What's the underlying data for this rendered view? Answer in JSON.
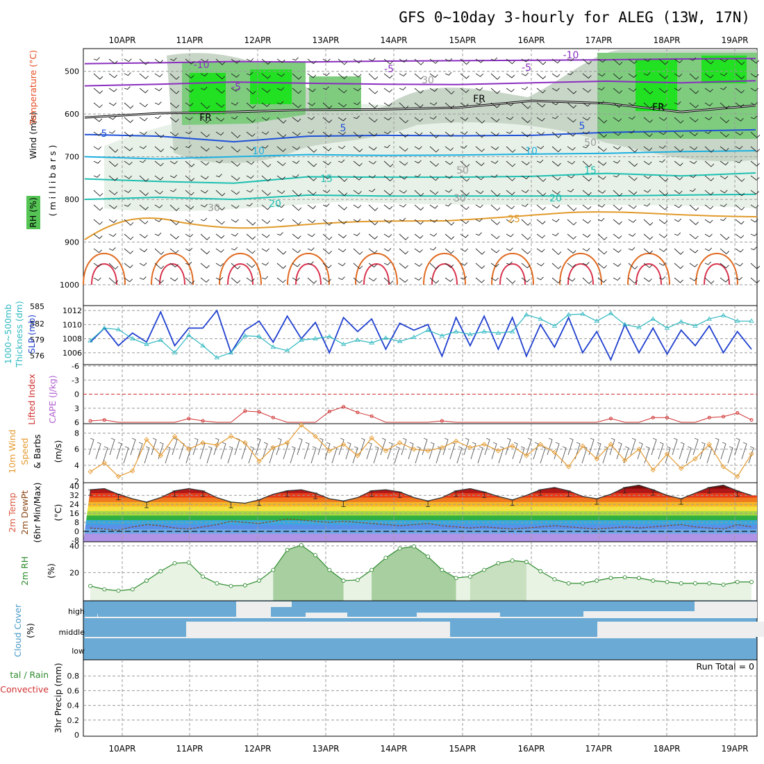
{
  "title": "GFS 0~10day 3-hourly for ALEG (13W, 17N)",
  "colors": {
    "grid": "#9a9a9a",
    "slp": "#1f3fcf",
    "thickness": "#2fb8c0",
    "lifted_index": "#d03030",
    "wind10": "#e49a30",
    "rh": "#2e8b2e",
    "rh_fill": "#e8f3e4",
    "cloud": "#6aaad4",
    "cloud_gap": "#eeeeee",
    "purple": "#8a2dbf",
    "blue": "#1e50d8",
    "cyan": "#1cb0e0",
    "teal": "#1cbfb0",
    "orange": "#e19a2a",
    "darkorange": "#e06a20",
    "red": "#d8304a",
    "green_bright": "#00e000",
    "green_mid": "#66c866",
    "green_pale": "#dfeedf"
  },
  "chart_data": [
    {
      "type": "line",
      "panel": "cross-section",
      "xlabel": "",
      "ylabel": "Wind (m/s)  Temperature (°C)  RH (%)  millibars",
      "x_ticks": [
        "10APR",
        "11APR",
        "12APR",
        "13APR",
        "14APR",
        "15APR",
        "16APR",
        "17APR",
        "18APR",
        "19APR"
      ],
      "y_ticks": [
        "500",
        "600",
        "700",
        "800",
        "900",
        "1000"
      ],
      "ylim": [
        450,
        1000
      ],
      "contour_labels": [
        "-10",
        "-10",
        "-5",
        "-5",
        "-5",
        "FR",
        "FR",
        "FR",
        "5",
        "5",
        "5",
        "10",
        "10",
        "15",
        "15",
        "20",
        "20",
        "25",
        "30",
        "30",
        "30",
        "50",
        "50"
      ],
      "series": [
        {
          "name": "-10 °C",
          "color": "purple",
          "values": [
            482,
            480,
            477,
            478,
            476,
            475,
            474,
            473,
            471,
            470
          ]
        },
        {
          "name": "-5 °C",
          "color": "purple",
          "values": [
            534,
            530,
            525,
            528,
            530,
            531,
            527,
            523,
            527,
            522
          ]
        },
        {
          "name": "FR",
          "color": "black",
          "values": [
            608,
            598,
            595,
            590,
            589,
            585,
            569,
            575,
            595,
            580
          ]
        },
        {
          "name": "5 °C",
          "color": "blue",
          "values": [
            648,
            652,
            665,
            652,
            650,
            651,
            650,
            643,
            640,
            637
          ]
        },
        {
          "name": "10 °C",
          "color": "cyan",
          "values": [
            700,
            705,
            700,
            695,
            697,
            696,
            694,
            692,
            688,
            686
          ]
        },
        {
          "name": "15 °C",
          "color": "teal",
          "values": [
            752,
            758,
            762,
            747,
            748,
            748,
            746,
            739,
            745,
            738
          ]
        },
        {
          "name": "20 °C",
          "color": "teal",
          "values": [
            800,
            795,
            800,
            790,
            792,
            792,
            792,
            792,
            790,
            788
          ]
        }
      ]
    },
    {
      "type": "line",
      "panel": "slp-thickness",
      "ylabel": "SLP (mb) / 1000~500mb Thickness (dm)",
      "y_ticks_left": [
        "585",
        "582",
        "579",
        "576"
      ],
      "y_ticks_right": [
        "1012",
        "1010",
        "1008",
        "1006"
      ],
      "ylim": [
        1004.5,
        1012.5
      ],
      "series": [
        {
          "name": "SLP",
          "values": [
            1007.5,
            1009.5,
            1007.0,
            1008.8,
            1007.5,
            1011.8,
            1007.0,
            1009.5,
            1009.5,
            1012.0,
            1006.0,
            1009.2,
            1010.5,
            1007.5,
            1011.2,
            1008.0,
            1010.3,
            1006.0,
            1011.0,
            1009.0,
            1010.8,
            1006.5,
            1010.2,
            1009.2,
            1010.0,
            1005.5,
            1011.0,
            1007.0,
            1011.2,
            1006.5,
            1011.0,
            1005.5,
            1010.0,
            1006.8,
            1011.0,
            1006.0,
            1009.0,
            1005.0,
            1010.0,
            1006.0,
            1009.5,
            1005.8,
            1009.2,
            1007.0,
            1009.8,
            1006.0,
            1009.0,
            1006.5
          ]
        },
        {
          "name": "Thickness",
          "values": [
            1007.7,
            1009.5,
            1009.3,
            1008.0,
            1007.2,
            1007.8,
            1006.0,
            1008.5,
            1007.0,
            1005.3,
            1006.0,
            1008.4,
            1008.3,
            1006.8,
            1006.3,
            1007.8,
            1008.0,
            1008.3,
            1007.2,
            1007.8,
            1007.4,
            1008.1,
            1007.6,
            1008.2,
            1009.2,
            1008.4,
            1009.0,
            1008.6,
            1009.0,
            1008.8,
            1009.0,
            1011.4,
            1010.8,
            1009.8,
            1011.4,
            1011.5,
            1010.5,
            1011.6,
            1010.0,
            1009.6,
            1010.8,
            1009.5,
            1010.4,
            1009.8,
            1010.8,
            1011.3,
            1010.5,
            1010.5
          ]
        }
      ]
    },
    {
      "type": "line",
      "panel": "lifted-index-cape",
      "ylabel": "Lifted Index / CAPE (J/kg)",
      "y_ticks": [
        "-6",
        "-3",
        "0",
        "3",
        "6"
      ],
      "ylim": [
        -6,
        6
      ],
      "series": [
        {
          "name": "Lifted Index",
          "values": [
            5.7,
            5.5,
            6.0,
            6.0,
            6.0,
            6.0,
            6.0,
            5.2,
            5.7,
            6.0,
            6.0,
            3.6,
            3.8,
            5.0,
            6.0,
            6.0,
            6.0,
            3.7,
            2.7,
            3.9,
            4.7,
            6.0,
            6.0,
            6.0,
            6.0,
            5.7,
            6.0,
            6.0,
            6.0,
            6.0,
            6.0,
            6.0,
            6.0,
            6.0,
            6.0,
            6.0,
            6.0,
            5.2,
            6.0,
            6.0,
            5.0,
            5.0,
            6.0,
            6.0,
            5.0,
            4.8,
            4.0,
            5.5
          ]
        }
      ]
    },
    {
      "type": "line",
      "panel": "wind10m",
      "ylabel": "10m Wind Speed & Barbs (m/s)",
      "y_ticks": [
        "2",
        "4",
        "6",
        "8"
      ],
      "ylim": [
        2,
        9
      ],
      "series": [
        {
          "name": "10m Wind Speed",
          "values": [
            3.2,
            4.3,
            2.6,
            3.3,
            7.2,
            5.2,
            7.6,
            6.0,
            6.8,
            6.5,
            7.6,
            6.8,
            4.5,
            6.2,
            6.8,
            9.0,
            7.6,
            5.8,
            6.6,
            5.2,
            7.4,
            5.8,
            6.8,
            6.0,
            5.8,
            6.2,
            7.0,
            6.2,
            6.6,
            5.8,
            6.4,
            5.2,
            6.6,
            5.6,
            3.8,
            6.4,
            4.8,
            6.6,
            4.6,
            6.0,
            3.4,
            5.4,
            3.6,
            4.8,
            6.6,
            3.8,
            2.6,
            5.4
          ]
        }
      ]
    },
    {
      "type": "area",
      "panel": "temperature",
      "ylabel": "2m Temp / 2m DewPt (6hr Min/Max) (°C)",
      "y_ticks": [
        "40",
        "32",
        "24",
        "16",
        "8",
        "0",
        "-8"
      ],
      "ylim": [
        -8,
        42
      ],
      "series": [
        {
          "name": "2m Temp",
          "values": [
            37,
            38,
            33,
            29,
            26,
            30,
            36,
            38,
            36,
            30,
            26,
            25,
            28,
            33,
            36,
            37,
            34,
            29,
            27,
            30,
            36,
            37,
            35,
            30,
            27,
            30,
            36,
            38,
            35,
            31,
            28,
            32,
            37,
            39,
            36,
            31,
            29,
            33,
            39,
            41,
            37,
            32,
            29,
            34,
            39,
            41,
            36,
            32
          ]
        },
        {
          "name": "2m DewPt",
          "values": [
            3,
            2,
            1,
            4,
            6,
            5,
            3,
            2,
            4,
            6,
            9,
            8,
            7,
            9,
            11,
            10,
            9,
            8,
            9,
            8,
            7,
            6,
            5,
            6,
            7,
            5,
            4,
            3,
            4,
            3,
            2,
            3,
            4,
            5,
            4,
            3,
            2,
            3,
            4,
            3,
            4,
            5,
            6,
            4,
            3,
            2,
            6,
            4
          ]
        }
      ]
    },
    {
      "type": "area",
      "panel": "rh2m",
      "ylabel": "2m RH (%)",
      "y_ticks": [
        "40",
        "20"
      ],
      "ylim": [
        0,
        42
      ],
      "series": [
        {
          "name": "2m RH",
          "values": [
            10,
            7.5,
            6.5,
            7.5,
            14,
            21,
            27,
            27.5,
            17,
            12,
            10,
            10.5,
            14,
            22,
            37,
            40.5,
            33,
            22,
            14,
            14.5,
            22,
            31,
            38,
            39.5,
            32,
            22,
            16,
            17,
            22,
            27,
            29,
            28,
            21,
            15,
            12,
            12,
            14,
            16,
            16.5,
            16,
            14,
            13,
            12,
            12,
            12,
            11,
            13,
            13
          ]
        }
      ]
    },
    {
      "type": "area",
      "panel": "cloud-cover",
      "ylabel": "Cloud Cover (%)",
      "categories": [
        "high",
        "middle",
        "low"
      ]
    },
    {
      "type": "bar",
      "panel": "precip",
      "ylabel": "3hr Precip (mm)",
      "legend": [
        "Total / Rain",
        "Convective"
      ],
      "y_ticks": [
        "0.8",
        "0.6",
        "0.4",
        "0.2",
        "0"
      ],
      "ylim": [
        0,
        1
      ],
      "values": [],
      "run_total_label": "Run Total = 0"
    }
  ]
}
